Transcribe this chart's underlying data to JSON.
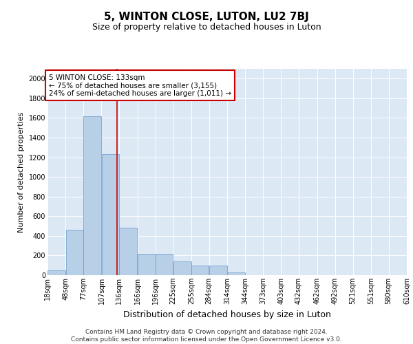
{
  "title": "5, WINTON CLOSE, LUTON, LU2 7BJ",
  "subtitle": "Size of property relative to detached houses in Luton",
  "xlabel": "Distribution of detached houses by size in Luton",
  "ylabel": "Number of detached properties",
  "bins": [
    "18sqm",
    "48sqm",
    "77sqm",
    "107sqm",
    "136sqm",
    "166sqm",
    "196sqm",
    "225sqm",
    "255sqm",
    "284sqm",
    "314sqm",
    "344sqm",
    "373sqm",
    "403sqm",
    "432sqm",
    "462sqm",
    "492sqm",
    "521sqm",
    "551sqm",
    "580sqm",
    "610sqm"
  ],
  "bin_edges": [
    18,
    48,
    77,
    107,
    136,
    166,
    196,
    225,
    255,
    284,
    314,
    344,
    373,
    403,
    432,
    462,
    492,
    521,
    551,
    580,
    610
  ],
  "bar_heights": [
    50,
    460,
    1620,
    1230,
    480,
    215,
    215,
    140,
    100,
    100,
    30,
    0,
    0,
    0,
    0,
    0,
    0,
    0,
    0,
    0
  ],
  "bar_color": "#b8cfe8",
  "bar_edge_color": "#6699cc",
  "property_size": 133,
  "vline_color": "#cc0000",
  "annotation_text": "5 WINTON CLOSE: 133sqm\n← 75% of detached houses are smaller (3,155)\n24% of semi-detached houses are larger (1,011) →",
  "annotation_box_color": "#cc0000",
  "ylim": [
    0,
    2100
  ],
  "yticks": [
    0,
    200,
    400,
    600,
    800,
    1000,
    1200,
    1400,
    1600,
    1800,
    2000
  ],
  "background_color": "#dde8f5",
  "grid_color": "#ffffff",
  "footer_line1": "Contains HM Land Registry data © Crown copyright and database right 2024.",
  "footer_line2": "Contains public sector information licensed under the Open Government Licence v3.0.",
  "title_fontsize": 11,
  "subtitle_fontsize": 9,
  "ylabel_fontsize": 8,
  "xlabel_fontsize": 9,
  "annotation_fontsize": 7.5,
  "footer_fontsize": 6.5,
  "tick_fontsize": 7
}
